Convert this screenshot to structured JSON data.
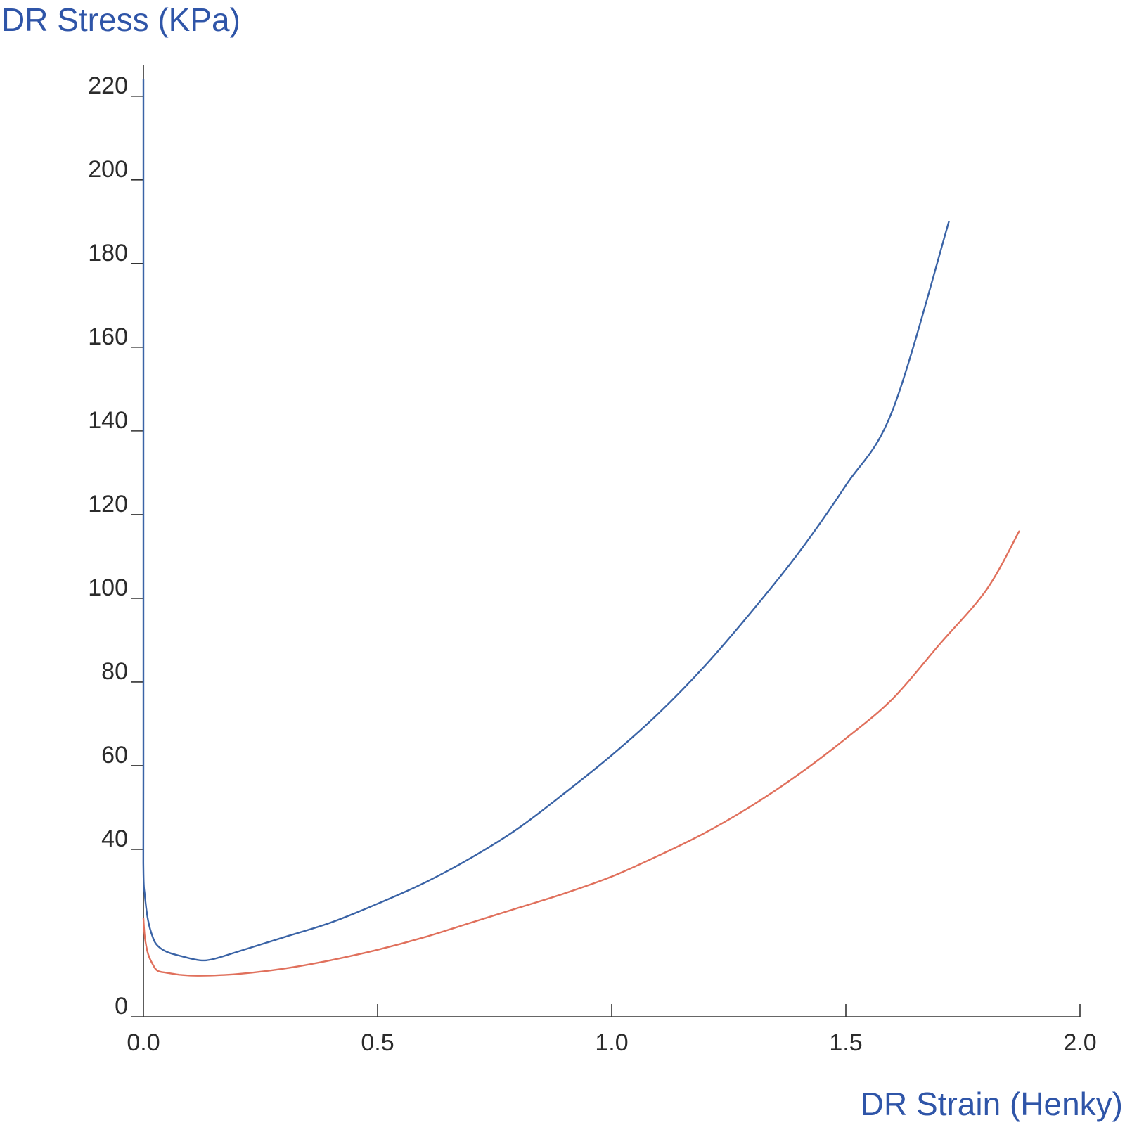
{
  "chart_data": {
    "type": "line",
    "xlabel": "DR Strain (Henky)",
    "ylabel": "DR Stress (KPa)",
    "xlim": [
      0,
      2.0
    ],
    "ylim": [
      0,
      224
    ],
    "xticks": [
      0.0,
      0.5,
      1.0,
      1.5,
      2.0
    ],
    "xtick_labels": [
      "0.0",
      "0.5",
      "1.0",
      "1.5",
      "2.0"
    ],
    "yticks": [
      0,
      40,
      60,
      80,
      100,
      120,
      140,
      160,
      180,
      200,
      220
    ],
    "ytick_labels": [
      "0",
      "40",
      "60",
      "80",
      "100",
      "120",
      "140",
      "160",
      "180",
      "200",
      "220"
    ],
    "grid": false,
    "legend": "none",
    "series": [
      {
        "color": "#3a63a6",
        "x": [
          0.0,
          0.0,
          0.0,
          0.003,
          0.01,
          0.02,
          0.03,
          0.05,
          0.08,
          0.12,
          0.15,
          0.2,
          0.3,
          0.4,
          0.5,
          0.6,
          0.7,
          0.8,
          0.9,
          1.0,
          1.1,
          1.2,
          1.3,
          1.4,
          1.5,
          1.6,
          1.72
        ],
        "y": [
          224,
          60,
          35,
          29,
          23,
          19,
          17,
          15.5,
          14.5,
          13.5,
          13.8,
          15.5,
          19,
          22.5,
          27,
          32,
          38,
          45,
          53.5,
          62.5,
          72.5,
          84,
          97,
          111,
          127,
          145,
          190
        ]
      },
      {
        "color": "#e0705c",
        "x": [
          0.0,
          0.003,
          0.01,
          0.02,
          0.03,
          0.05,
          0.08,
          0.12,
          0.2,
          0.3,
          0.4,
          0.5,
          0.6,
          0.7,
          0.8,
          0.9,
          1.0,
          1.1,
          1.2,
          1.3,
          1.4,
          1.5,
          1.6,
          1.7,
          1.8,
          1.87
        ],
        "y": [
          23.5,
          19,
          15,
          12.5,
          11,
          10.5,
          10,
          9.8,
          10.2,
          11.5,
          13.5,
          16,
          19,
          22.5,
          26,
          29.5,
          33.5,
          38.5,
          44,
          50.5,
          58,
          66.5,
          76,
          89,
          102,
          116
        ]
      }
    ]
  }
}
